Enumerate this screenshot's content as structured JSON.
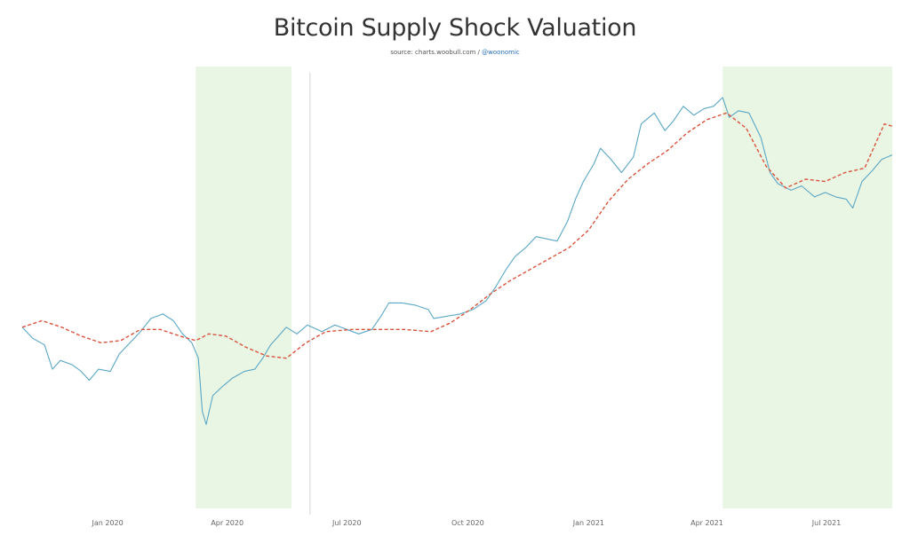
{
  "chart_data": {
    "type": "line",
    "title": "Bitcoin Supply Shock Valuation",
    "source": {
      "prefix": "source: charts.woobull.com / ",
      "handle": "@woonomic"
    },
    "xlabel": "",
    "ylabel": "",
    "grid": false,
    "legend": "none",
    "x_range": [
      "2019-10-28",
      "2021-08-20"
    ],
    "y_range": [
      0,
      100
    ],
    "x_ticks": [
      {
        "date": "2020-01-01",
        "label": "Jan 2020"
      },
      {
        "date": "2020-04-01",
        "label": "Apr 2020"
      },
      {
        "date": "2020-07-01",
        "label": "Jul 2020"
      },
      {
        "date": "2020-10-01",
        "label": "Oct 2020"
      },
      {
        "date": "2021-01-01",
        "label": "Jan 2021"
      },
      {
        "date": "2021-04-01",
        "label": "Apr 2021"
      },
      {
        "date": "2021-07-01",
        "label": "Jul 2021"
      }
    ],
    "shaded_regions": [
      {
        "start": "2020-03-08",
        "end": "2020-05-20",
        "color": "#eaf6e4"
      },
      {
        "start": "2021-04-13",
        "end": "2021-08-20",
        "color": "#eaf6e4"
      }
    ],
    "vertical_lines": [
      {
        "date": "2020-06-03",
        "color": "#d4d4d4"
      }
    ],
    "series": [
      {
        "style": "solid",
        "color": "#5aa7c6",
        "points": [
          [
            "2019-10-28",
            41.0
          ],
          [
            "2019-11-05",
            38.5
          ],
          [
            "2019-11-14",
            37.0
          ],
          [
            "2019-11-20",
            31.5
          ],
          [
            "2019-11-26",
            33.5
          ],
          [
            "2019-12-05",
            32.5
          ],
          [
            "2019-12-12",
            31.0
          ],
          [
            "2019-12-18",
            29.0
          ],
          [
            "2019-12-25",
            31.5
          ],
          [
            "2020-01-03",
            31.0
          ],
          [
            "2020-01-10",
            35.0
          ],
          [
            "2020-01-18",
            37.5
          ],
          [
            "2020-01-26",
            40.0
          ],
          [
            "2020-02-03",
            43.0
          ],
          [
            "2020-02-12",
            44.0
          ],
          [
            "2020-02-20",
            42.5
          ],
          [
            "2020-02-27",
            39.5
          ],
          [
            "2020-03-05",
            37.5
          ],
          [
            "2020-03-10",
            34.0
          ],
          [
            "2020-03-13",
            22.0
          ],
          [
            "2020-03-16",
            19.0
          ],
          [
            "2020-03-21",
            25.5
          ],
          [
            "2020-03-28",
            27.5
          ],
          [
            "2020-04-05",
            29.5
          ],
          [
            "2020-04-14",
            31.0
          ],
          [
            "2020-04-22",
            31.5
          ],
          [
            "2020-04-28",
            34.0
          ],
          [
            "2020-05-04",
            37.0
          ],
          [
            "2020-05-10",
            39.0
          ],
          [
            "2020-05-16",
            41.0
          ],
          [
            "2020-05-24",
            39.5
          ],
          [
            "2020-06-01",
            41.5
          ],
          [
            "2020-06-12",
            40.0
          ],
          [
            "2020-06-22",
            41.5
          ],
          [
            "2020-07-01",
            40.5
          ],
          [
            "2020-07-10",
            39.5
          ],
          [
            "2020-07-20",
            40.5
          ],
          [
            "2020-07-27",
            43.5
          ],
          [
            "2020-08-02",
            46.5
          ],
          [
            "2020-08-12",
            46.5
          ],
          [
            "2020-08-22",
            46.0
          ],
          [
            "2020-09-01",
            45.0
          ],
          [
            "2020-09-05",
            43.0
          ],
          [
            "2020-09-15",
            43.5
          ],
          [
            "2020-09-25",
            44.0
          ],
          [
            "2020-10-05",
            45.0
          ],
          [
            "2020-10-15",
            47.0
          ],
          [
            "2020-10-22",
            50.0
          ],
          [
            "2020-10-30",
            54.0
          ],
          [
            "2020-11-06",
            57.0
          ],
          [
            "2020-11-14",
            59.0
          ],
          [
            "2020-11-22",
            61.5
          ],
          [
            "2020-11-30",
            61.0
          ],
          [
            "2020-12-08",
            60.5
          ],
          [
            "2020-12-16",
            65.0
          ],
          [
            "2020-12-22",
            70.0
          ],
          [
            "2020-12-28",
            74.0
          ],
          [
            "2021-01-05",
            78.0
          ],
          [
            "2021-01-10",
            81.5
          ],
          [
            "2021-01-18",
            79.0
          ],
          [
            "2021-01-26",
            76.0
          ],
          [
            "2021-02-04",
            79.5
          ],
          [
            "2021-02-10",
            87.0
          ],
          [
            "2021-02-20",
            89.5
          ],
          [
            "2021-02-28",
            85.5
          ],
          [
            "2021-03-06",
            87.5
          ],
          [
            "2021-03-14",
            91.0
          ],
          [
            "2021-03-22",
            89.0
          ],
          [
            "2021-03-30",
            90.5
          ],
          [
            "2021-04-06",
            91.0
          ],
          [
            "2021-04-13",
            93.0
          ],
          [
            "2021-04-18",
            88.5
          ],
          [
            "2021-04-25",
            90.0
          ],
          [
            "2021-05-03",
            89.5
          ],
          [
            "2021-05-12",
            84.0
          ],
          [
            "2021-05-19",
            76.0
          ],
          [
            "2021-05-25",
            73.5
          ],
          [
            "2021-06-04",
            72.0
          ],
          [
            "2021-06-12",
            73.0
          ],
          [
            "2021-06-22",
            70.5
          ],
          [
            "2021-06-30",
            71.5
          ],
          [
            "2021-07-08",
            70.5
          ],
          [
            "2021-07-16",
            70.0
          ],
          [
            "2021-07-21",
            68.0
          ],
          [
            "2021-07-28",
            74.0
          ],
          [
            "2021-08-05",
            76.5
          ],
          [
            "2021-08-12",
            79.0
          ],
          [
            "2021-08-20",
            80.0
          ]
        ]
      },
      {
        "style": "dashed",
        "color": "#d9543d",
        "points": [
          [
            "2019-10-28",
            41.0
          ],
          [
            "2019-11-12",
            42.5
          ],
          [
            "2019-11-27",
            41.0
          ],
          [
            "2019-12-12",
            39.0
          ],
          [
            "2019-12-27",
            37.5
          ],
          [
            "2020-01-11",
            38.0
          ],
          [
            "2020-01-26",
            40.5
          ],
          [
            "2020-02-10",
            40.5
          ],
          [
            "2020-02-25",
            39.0
          ],
          [
            "2020-03-08",
            38.0
          ],
          [
            "2020-03-18",
            39.5
          ],
          [
            "2020-03-31",
            39.0
          ],
          [
            "2020-04-15",
            36.5
          ],
          [
            "2020-05-01",
            34.5
          ],
          [
            "2020-05-16",
            34.0
          ],
          [
            "2020-05-31",
            37.5
          ],
          [
            "2020-06-15",
            40.0
          ],
          [
            "2020-07-05",
            40.5
          ],
          [
            "2020-07-25",
            40.5
          ],
          [
            "2020-08-14",
            40.5
          ],
          [
            "2020-09-03",
            40.0
          ],
          [
            "2020-09-18",
            42.0
          ],
          [
            "2020-10-03",
            45.0
          ],
          [
            "2020-10-18",
            48.5
          ],
          [
            "2020-11-02",
            51.5
          ],
          [
            "2020-11-17",
            54.0
          ],
          [
            "2020-12-02",
            56.5
          ],
          [
            "2020-12-17",
            59.0
          ],
          [
            "2021-01-01",
            63.0
          ],
          [
            "2021-01-16",
            69.5
          ],
          [
            "2021-01-31",
            74.5
          ],
          [
            "2021-02-15",
            78.0
          ],
          [
            "2021-03-02",
            81.0
          ],
          [
            "2021-03-17",
            85.0
          ],
          [
            "2021-04-01",
            88.0
          ],
          [
            "2021-04-16",
            89.5
          ],
          [
            "2021-05-01",
            86.0
          ],
          [
            "2021-05-16",
            77.5
          ],
          [
            "2021-05-31",
            72.5
          ],
          [
            "2021-06-15",
            74.5
          ],
          [
            "2021-06-30",
            74.0
          ],
          [
            "2021-07-15",
            76.0
          ],
          [
            "2021-07-30",
            77.0
          ],
          [
            "2021-08-14",
            87.0
          ],
          [
            "2021-08-20",
            86.5
          ]
        ]
      }
    ]
  }
}
